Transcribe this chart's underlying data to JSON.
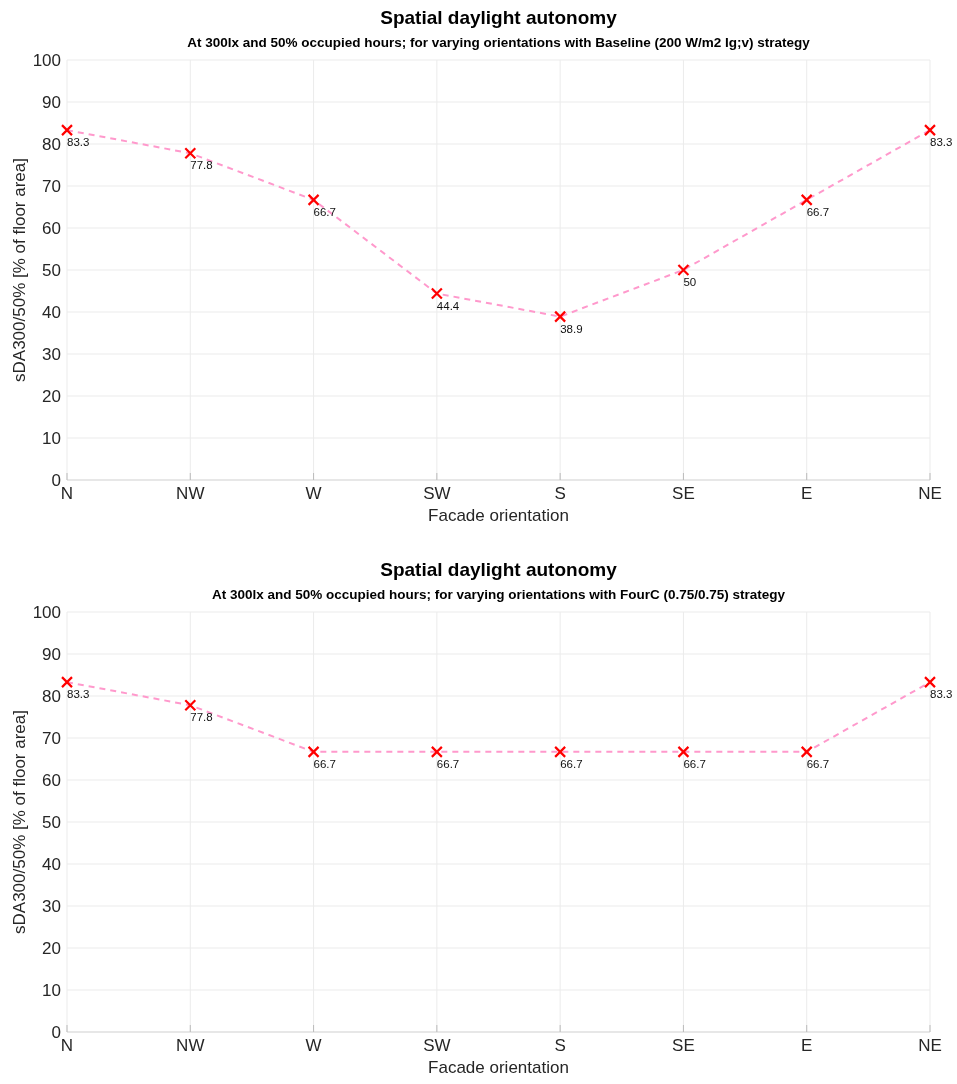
{
  "chart_data": [
    {
      "type": "line",
      "title": "Spatial daylight autonomy",
      "subtitle": "At 300lx and 50% occupied hours; for varying orientations with Baseline (200 W/m2 Ig;v) strategy",
      "xlabel": "Facade orientation",
      "ylabel": "sDA300/50% [% of floor area]",
      "categories": [
        "N",
        "NW",
        "W",
        "SW",
        "S",
        "SE",
        "E",
        "NE"
      ],
      "ylim": [
        0,
        100
      ],
      "yticks": [
        0,
        10,
        20,
        30,
        40,
        50,
        60,
        70,
        80,
        90,
        100
      ],
      "grid": true,
      "series": [
        {
          "color": "#ff99cc",
          "line_style": "dashed",
          "marker": "none",
          "values": [
            83.3,
            77.8,
            66.7,
            44.4,
            38.9,
            50,
            66.7,
            83.3
          ]
        },
        {
          "type": "scatter",
          "color": "#ff0000",
          "marker": "cross",
          "values": [
            83.3,
            77.8,
            66.7,
            44.4,
            38.9,
            50,
            66.7,
            83.3
          ],
          "value_labels": [
            "83.3",
            "77.8",
            "66.7",
            "44.4",
            "38.9",
            "50",
            "66.7",
            "83.3"
          ]
        }
      ]
    },
    {
      "type": "line",
      "title": "Spatial daylight autonomy",
      "subtitle": "At 300lx and 50% occupied hours; for varying orientations with FourC (0.75/0.75) strategy",
      "xlabel": "Facade orientation",
      "ylabel": "sDA300/50% [% of floor area]",
      "categories": [
        "N",
        "NW",
        "W",
        "SW",
        "S",
        "SE",
        "E",
        "NE"
      ],
      "ylim": [
        0,
        100
      ],
      "yticks": [
        0,
        10,
        20,
        30,
        40,
        50,
        60,
        70,
        80,
        90,
        100
      ],
      "grid": true,
      "series": [
        {
          "color": "#ff99cc",
          "line_style": "dashed",
          "marker": "none",
          "values": [
            83.3,
            77.8,
            66.7,
            66.7,
            66.7,
            66.7,
            66.7,
            83.3
          ]
        },
        {
          "type": "scatter",
          "color": "#ff0000",
          "marker": "cross",
          "values": [
            83.3,
            77.8,
            66.7,
            66.7,
            66.7,
            66.7,
            66.7,
            83.3
          ],
          "value_labels": [
            "83.3",
            "77.8",
            "66.7",
            "66.7",
            "66.7",
            "66.7",
            "66.7",
            "83.3"
          ]
        }
      ]
    }
  ]
}
